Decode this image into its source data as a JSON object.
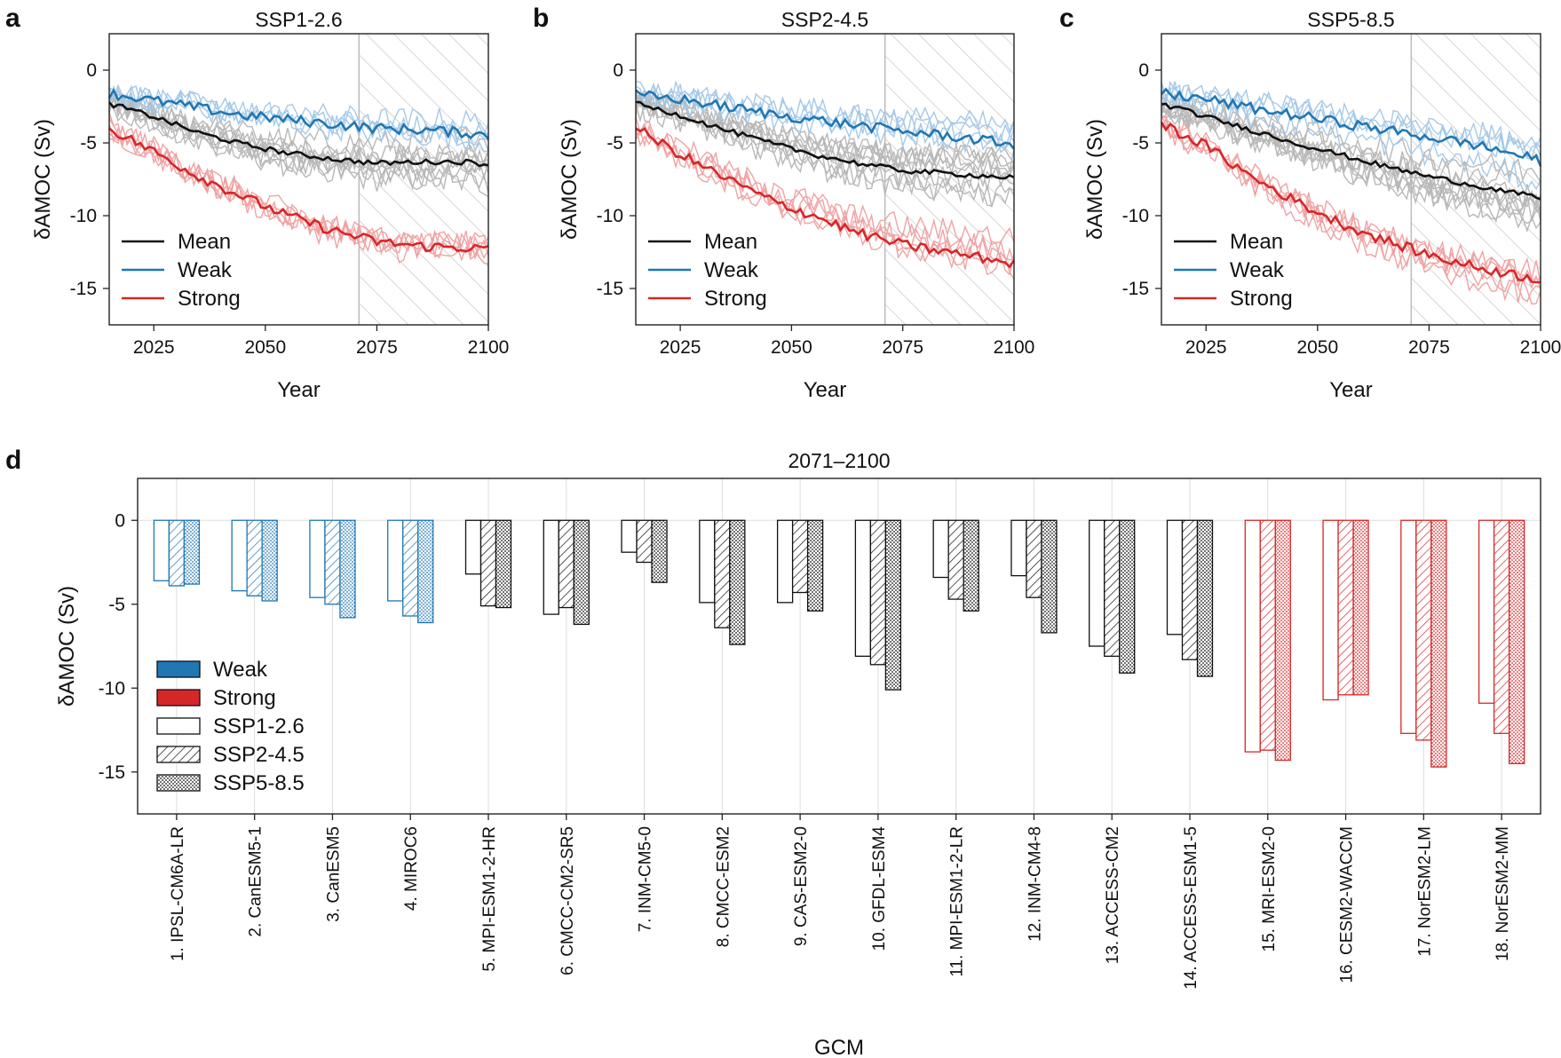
{
  "chart_data": [
    {
      "type": "line",
      "panel_letter": "a",
      "title": "SSP1-2.6",
      "xlabel": "Year",
      "ylabel": "δAMOC (Sv)",
      "xlim": [
        2015,
        2100
      ],
      "ylim": [
        -17.5,
        2.5
      ],
      "xticks": [
        2025,
        2050,
        2075,
        2100
      ],
      "yticks": [
        0,
        -5,
        -10,
        -15
      ],
      "hatched_period": [
        2071,
        2100
      ],
      "legend": {
        "position": "lower-left",
        "entries": [
          "Mean",
          "Weak",
          "Strong"
        ]
      },
      "series": [
        {
          "name": "Mean",
          "color": "#111111",
          "x": [
            2015,
            2025,
            2035,
            2045,
            2055,
            2065,
            2075,
            2085,
            2095,
            2100
          ],
          "values": [
            -2.3,
            -3.2,
            -4.3,
            -5.1,
            -5.7,
            -6.1,
            -6.4,
            -6.3,
            -6.3,
            -6.5
          ]
        },
        {
          "name": "Weak",
          "color": "#1f77b4",
          "x": [
            2015,
            2025,
            2035,
            2045,
            2055,
            2065,
            2075,
            2085,
            2095,
            2100
          ],
          "values": [
            -1.6,
            -2.1,
            -2.6,
            -3.1,
            -3.4,
            -3.7,
            -4.0,
            -4.1,
            -4.3,
            -4.5
          ]
        },
        {
          "name": "Strong",
          "color": "#d62728",
          "x": [
            2015,
            2025,
            2035,
            2045,
            2055,
            2065,
            2075,
            2085,
            2095,
            2100
          ],
          "values": [
            -4.0,
            -5.6,
            -7.3,
            -8.7,
            -10.0,
            -11.0,
            -11.8,
            -12.1,
            -12.2,
            -12.3
          ]
        }
      ]
    },
    {
      "type": "line",
      "panel_letter": "b",
      "title": "SSP2-4.5",
      "xlabel": "Year",
      "ylabel": "δAMOC (Sv)",
      "xlim": [
        2015,
        2100
      ],
      "ylim": [
        -17.5,
        2.5
      ],
      "xticks": [
        2025,
        2050,
        2075,
        2100
      ],
      "yticks": [
        0,
        -5,
        -10,
        -15
      ],
      "hatched_period": [
        2071,
        2100
      ],
      "legend": {
        "position": "lower-left",
        "entries": [
          "Mean",
          "Weak",
          "Strong"
        ]
      },
      "series": [
        {
          "name": "Mean",
          "color": "#111111",
          "x": [
            2015,
            2025,
            2035,
            2045,
            2055,
            2065,
            2075,
            2085,
            2095,
            2100
          ],
          "values": [
            -2.3,
            -3.1,
            -4.1,
            -5.0,
            -5.8,
            -6.4,
            -6.9,
            -7.1,
            -7.3,
            -7.4
          ]
        },
        {
          "name": "Weak",
          "color": "#1f77b4",
          "x": [
            2015,
            2025,
            2035,
            2045,
            2055,
            2065,
            2075,
            2085,
            2095,
            2100
          ],
          "values": [
            -1.7,
            -2.0,
            -2.5,
            -3.0,
            -3.4,
            -3.8,
            -4.2,
            -4.5,
            -4.9,
            -5.1
          ]
        },
        {
          "name": "Strong",
          "color": "#d62728",
          "x": [
            2015,
            2025,
            2035,
            2045,
            2055,
            2065,
            2075,
            2085,
            2095,
            2100
          ],
          "values": [
            -4.0,
            -5.8,
            -7.4,
            -8.9,
            -10.0,
            -11.2,
            -12.0,
            -12.5,
            -13.0,
            -13.3
          ]
        }
      ]
    },
    {
      "type": "line",
      "panel_letter": "c",
      "title": "SSP5-8.5",
      "xlabel": "Year",
      "ylabel": "δAMOC (Sv)",
      "xlim": [
        2015,
        2100
      ],
      "ylim": [
        -17.5,
        2.5
      ],
      "xticks": [
        2025,
        2050,
        2075,
        2100
      ],
      "yticks": [
        0,
        -5,
        -10,
        -15
      ],
      "hatched_period": [
        2071,
        2100
      ],
      "legend": {
        "position": "lower-left",
        "entries": [
          "Mean",
          "Weak",
          "Strong"
        ]
      },
      "series": [
        {
          "name": "Mean",
          "color": "#111111",
          "x": [
            2015,
            2025,
            2035,
            2045,
            2055,
            2065,
            2075,
            2085,
            2095,
            2100
          ],
          "values": [
            -2.3,
            -3.2,
            -4.1,
            -5.0,
            -5.8,
            -6.6,
            -7.3,
            -7.9,
            -8.5,
            -8.8
          ]
        },
        {
          "name": "Weak",
          "color": "#1f77b4",
          "x": [
            2015,
            2025,
            2035,
            2045,
            2055,
            2065,
            2075,
            2085,
            2095,
            2100
          ],
          "values": [
            -1.6,
            -2.0,
            -2.6,
            -3.1,
            -3.6,
            -4.1,
            -4.6,
            -5.1,
            -5.8,
            -6.3
          ]
        },
        {
          "name": "Strong",
          "color": "#d62728",
          "x": [
            2015,
            2025,
            2035,
            2045,
            2055,
            2065,
            2075,
            2085,
            2095,
            2100
          ],
          "values": [
            -3.7,
            -5.2,
            -7.3,
            -9.0,
            -10.5,
            -11.7,
            -12.7,
            -13.5,
            -14.1,
            -14.4
          ]
        }
      ]
    },
    {
      "type": "bar",
      "panel_letter": "d",
      "title": "2071–2100",
      "xlabel": "GCM",
      "ylabel": "δAMOC (Sv)",
      "ylim": [
        -17.5,
        2.5
      ],
      "yticks": [
        0,
        -5,
        -10,
        -15
      ],
      "legend": {
        "position": "lower-left",
        "entries": [
          "Weak",
          "Strong",
          "SSP1-2.6",
          "SSP2-4.5",
          "SSP5-8.5"
        ]
      },
      "categories": [
        "1. IPSL-CM6A-LR",
        "2. CanESM5-1",
        "3. CanESM5",
        "4. MIROC6",
        "5. MPI-ESM1-2-HR",
        "6. CMCC-CM2-SR5",
        "7. INM-CM5-0",
        "8. CMCC-ESM2",
        "9. CAS-ESM2-0",
        "10. GFDL-ESM4",
        "11. MPI-ESM1-2-LR",
        "12. INM-CM4-8",
        "13. ACCESS-CM2",
        "14. ACCESS-ESM1-5",
        "15. MRI-ESM2-0",
        "16. CESM2-WACCM",
        "17. NorESM2-LM",
        "18. NorESM2-MM"
      ],
      "groups": [
        "weak",
        "weak",
        "weak",
        "weak",
        "mid",
        "mid",
        "mid",
        "mid",
        "mid",
        "mid",
        "mid",
        "mid",
        "mid",
        "mid",
        "strong",
        "strong",
        "strong",
        "strong"
      ],
      "series": [
        {
          "name": "SSP1-2.6",
          "values": [
            -3.6,
            -4.2,
            -4.6,
            -4.8,
            -3.2,
            -5.6,
            -1.9,
            -4.9,
            -4.9,
            -8.1,
            -3.4,
            -3.3,
            -7.5,
            -6.8,
            -13.8,
            -10.7,
            -12.7,
            -10.9
          ]
        },
        {
          "name": "SSP2-4.5",
          "values": [
            -3.9,
            -4.5,
            -5.0,
            -5.7,
            -5.1,
            -5.2,
            -2.5,
            -6.4,
            -4.3,
            -8.6,
            -4.7,
            -4.6,
            -8.1,
            -8.3,
            -13.7,
            -10.4,
            -13.1,
            -12.7
          ]
        },
        {
          "name": "SSP5-8.5",
          "values": [
            -3.8,
            -4.8,
            -5.8,
            -6.1,
            -5.2,
            -6.2,
            -3.7,
            -7.4,
            -5.4,
            -10.1,
            -5.4,
            -6.7,
            -9.1,
            -9.3,
            -14.3,
            -10.4,
            -14.7,
            -14.5
          ]
        }
      ]
    }
  ],
  "colors": {
    "weak": "#1f77b4",
    "strong": "#d62728",
    "mean": "#111111",
    "mid": "#111111"
  }
}
